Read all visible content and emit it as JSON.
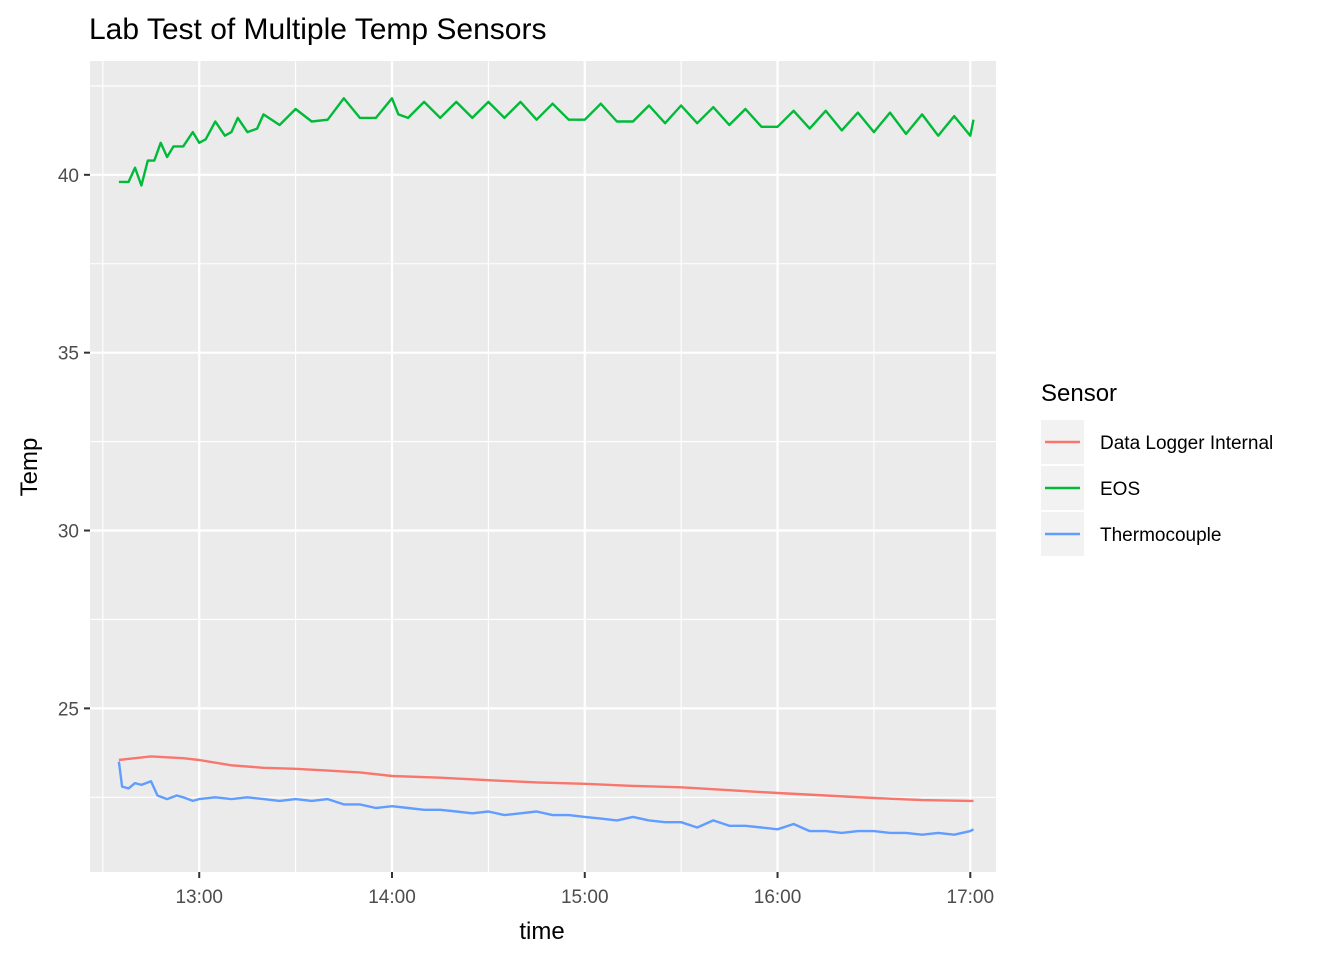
{
  "chart_data": {
    "type": "line",
    "title": "Lab Test of Multiple Temp Sensors",
    "xlabel": "time",
    "ylabel": "Temp",
    "x_ticks": [
      "13:00",
      "14:00",
      "15:00",
      "16:00",
      "17:00"
    ],
    "y_ticks": [
      25,
      30,
      35,
      40
    ],
    "xlim": [
      "12:26",
      "17:08"
    ],
    "ylim": [
      20.4,
      43.2
    ],
    "legend_title": "Sensor",
    "legend_position": "right",
    "grid": true,
    "series": [
      {
        "name": "Data Logger Internal",
        "color": "#F8766D",
        "x": [
          "12:35",
          "12:45",
          "12:55",
          "13:00",
          "13:10",
          "13:20",
          "13:30",
          "13:40",
          "13:50",
          "14:00",
          "14:15",
          "14:30",
          "14:45",
          "15:00",
          "15:15",
          "15:30",
          "15:45",
          "16:00",
          "16:15",
          "16:30",
          "16:45",
          "17:00",
          "17:01"
        ],
        "y": [
          23.55,
          23.65,
          23.6,
          23.55,
          23.4,
          23.33,
          23.3,
          23.25,
          23.2,
          23.1,
          23.05,
          22.98,
          22.92,
          22.88,
          22.82,
          22.78,
          22.7,
          22.62,
          22.55,
          22.48,
          22.42,
          22.4,
          22.4
        ]
      },
      {
        "name": "EOS",
        "color": "#00BA38",
        "x": [
          "12:35",
          "12:38",
          "12:40",
          "12:42",
          "12:44",
          "12:46",
          "12:48",
          "12:50",
          "12:52",
          "12:55",
          "12:58",
          "13:00",
          "13:02",
          "13:05",
          "13:08",
          "13:10",
          "13:12",
          "13:15",
          "13:18",
          "13:20",
          "13:25",
          "13:30",
          "13:35",
          "13:40",
          "13:45",
          "13:50",
          "13:52",
          "13:55",
          "14:00",
          "14:02",
          "14:05",
          "14:10",
          "14:15",
          "14:20",
          "14:25",
          "14:30",
          "14:35",
          "14:40",
          "14:45",
          "14:50",
          "14:55",
          "15:00",
          "15:05",
          "15:10",
          "15:15",
          "15:20",
          "15:25",
          "15:30",
          "15:35",
          "15:40",
          "15:45",
          "15:50",
          "15:55",
          "16:00",
          "16:05",
          "16:10",
          "16:15",
          "16:20",
          "16:25",
          "16:30",
          "16:35",
          "16:40",
          "16:45",
          "16:50",
          "16:55",
          "17:00",
          "17:01"
        ],
        "y": [
          39.8,
          39.8,
          40.2,
          39.7,
          40.4,
          40.4,
          40.9,
          40.5,
          40.8,
          40.8,
          41.2,
          40.9,
          41.0,
          41.5,
          41.1,
          41.2,
          41.6,
          41.2,
          41.3,
          41.7,
          41.4,
          41.85,
          41.5,
          41.55,
          42.15,
          41.6,
          41.6,
          41.6,
          42.15,
          41.7,
          41.6,
          42.05,
          41.6,
          42.05,
          41.6,
          42.05,
          41.6,
          42.05,
          41.55,
          42.0,
          41.55,
          41.55,
          42.0,
          41.5,
          41.5,
          41.95,
          41.45,
          41.95,
          41.45,
          41.9,
          41.4,
          41.85,
          41.35,
          41.35,
          41.8,
          41.3,
          41.8,
          41.25,
          41.75,
          41.2,
          41.75,
          41.15,
          41.7,
          41.1,
          41.65,
          41.1,
          41.55
        ]
      },
      {
        "name": "Thermocouple",
        "color": "#619CFF",
        "x": [
          "12:35",
          "12:36",
          "12:38",
          "12:40",
          "12:42",
          "12:45",
          "12:47",
          "12:50",
          "12:53",
          "12:55",
          "12:58",
          "13:00",
          "13:05",
          "13:10",
          "13:15",
          "13:20",
          "13:25",
          "13:30",
          "13:35",
          "13:40",
          "13:45",
          "13:50",
          "13:55",
          "14:00",
          "14:05",
          "14:10",
          "14:15",
          "14:20",
          "14:25",
          "14:30",
          "14:35",
          "14:40",
          "14:45",
          "14:50",
          "14:55",
          "15:00",
          "15:05",
          "15:10",
          "15:15",
          "15:20",
          "15:25",
          "15:30",
          "15:35",
          "15:40",
          "15:45",
          "15:50",
          "15:55",
          "16:00",
          "16:05",
          "16:10",
          "16:15",
          "16:20",
          "16:25",
          "16:30",
          "16:35",
          "16:40",
          "16:45",
          "16:50",
          "16:55",
          "17:00",
          "17:01"
        ],
        "y": [
          23.5,
          22.8,
          22.75,
          22.9,
          22.85,
          22.95,
          22.55,
          22.45,
          22.55,
          22.5,
          22.4,
          22.45,
          22.5,
          22.45,
          22.5,
          22.45,
          22.4,
          22.45,
          22.4,
          22.45,
          22.3,
          22.3,
          22.2,
          22.25,
          22.2,
          22.15,
          22.15,
          22.1,
          22.05,
          22.1,
          22.0,
          22.05,
          22.1,
          22.0,
          22.0,
          21.95,
          21.9,
          21.85,
          21.95,
          21.85,
          21.8,
          21.8,
          21.65,
          21.85,
          21.7,
          21.7,
          21.65,
          21.6,
          21.75,
          21.55,
          21.55,
          21.5,
          21.55,
          21.55,
          21.5,
          21.5,
          21.45,
          21.5,
          21.45,
          21.55,
          21.6
        ]
      }
    ]
  }
}
